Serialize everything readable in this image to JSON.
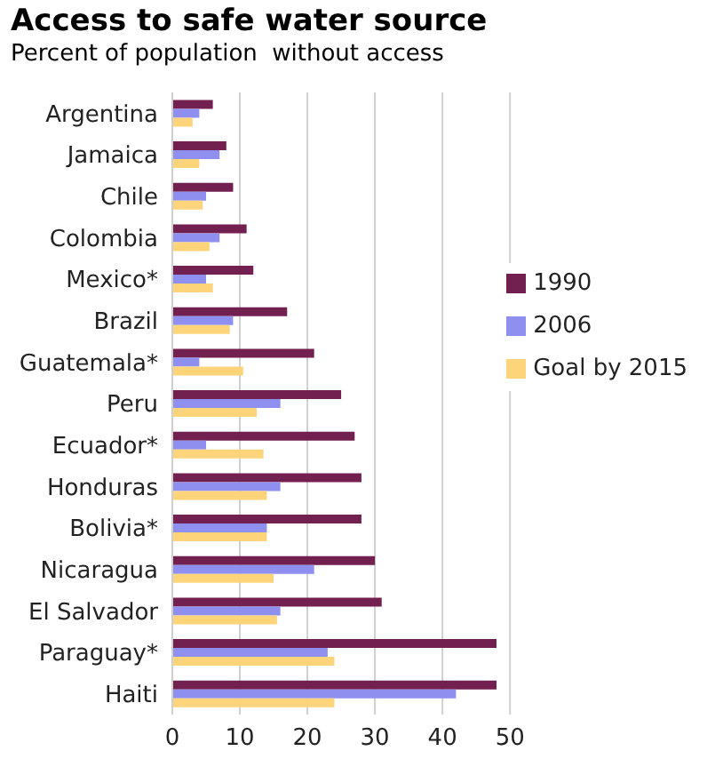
{
  "chart_data": {
    "type": "bar",
    "orientation": "horizontal",
    "title": "Access to safe water source",
    "subtitle": "Percent of population  without access",
    "categories": [
      "Argentina",
      "Jamaica",
      "Chile",
      "Colombia",
      "Mexico*",
      "Brazil",
      "Guatemala*",
      "Peru",
      "Ecuador*",
      "Honduras",
      "Bolivia*",
      "Nicaragua",
      "El Salvador",
      "Paraguay*",
      "Haiti"
    ],
    "series": [
      {
        "name": "1990",
        "color": "#722050",
        "values": [
          6,
          8,
          9,
          11,
          12,
          17,
          21,
          25,
          27,
          28,
          28,
          30,
          31,
          48,
          48
        ]
      },
      {
        "name": "2006",
        "color": "#8f8ff0",
        "values": [
          4,
          7,
          5,
          7,
          5,
          9,
          4,
          16,
          5,
          16,
          14,
          21,
          16,
          23,
          42
        ]
      },
      {
        "name": "Goal by 2015",
        "color": "#fdd47a",
        "values": [
          3,
          4,
          4.5,
          5.5,
          6,
          8.5,
          10.5,
          12.5,
          13.5,
          14,
          14,
          15,
          15.5,
          24,
          24
        ]
      }
    ],
    "xlim": [
      0,
      50
    ],
    "xticks": [
      0,
      10,
      20,
      30,
      40,
      50
    ],
    "grid": "x",
    "legend": "right"
  }
}
